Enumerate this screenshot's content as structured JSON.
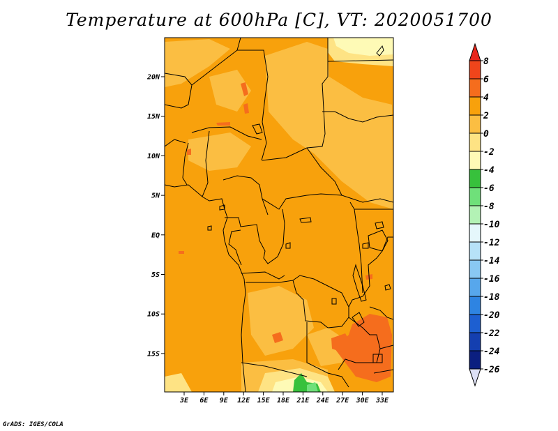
{
  "title": "Temperature at 600hPa [C], VT: 2020051700",
  "credit": "GrADS: IGES/COLA",
  "map": {
    "lon_ticks": [
      "3E",
      "6E",
      "9E",
      "12E",
      "15E",
      "18E",
      "21E",
      "24E",
      "27E",
      "30E",
      "33E"
    ],
    "lat_ticks": [
      "20N",
      "15N",
      "10N",
      "5N",
      "EQ",
      "5S",
      "10S",
      "15S"
    ]
  },
  "colorbar": {
    "labels": [
      "8",
      "6",
      "4",
      "2",
      "0",
      "-2",
      "-4",
      "-6",
      "-8",
      "-10",
      "-12",
      "-14",
      "-16",
      "-18",
      "-20",
      "-22",
      "-24",
      "-26"
    ],
    "colors": {
      "top_triangle": "#e8261b",
      "6_8": "#f0451b",
      "4_6": "#f56d1d",
      "2_4": "#f8a10c",
      "0_2": "#fbbe42",
      "m2_0": "#fee384",
      "m4_m2": "#fefab6",
      "m6_m4": "#37c13c",
      "m8_m6": "#6fe07a",
      "m10_m8": "#b3f2b5",
      "m12_m10": "#e5f7fb",
      "m14_m12": "#b7e2f8",
      "m16_m14": "#89c8f3",
      "m18_m16": "#57a7ec",
      "m20_m18": "#2e84e2",
      "m22_m20": "#1d5fd1",
      "m24_m22": "#143fb0",
      "m26_m24": "#0b1f80",
      "bottom_triangle": "#dde0f5"
    }
  }
}
